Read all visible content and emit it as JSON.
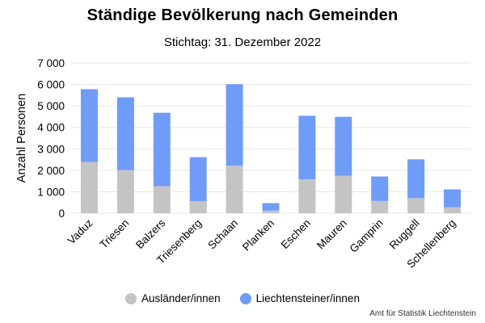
{
  "header": {
    "title": "Ständige Bevölkerung nach Gemeinden",
    "subtitle": "Stichtag: 31. Dezember 2022"
  },
  "footer": {
    "credit": "Amt für Statistik Liechtenstein"
  },
  "colors": {
    "auslaender": "#c4c4c4",
    "liechtensteiner": "#6f9cf7",
    "grid": "#e6e6e6"
  },
  "chart_data": {
    "type": "bar",
    "stacked": true,
    "title": "Ständige Bevölkerung nach Gemeinden",
    "subtitle": "Stichtag: 31. Dezember 2022",
    "xlabel": "",
    "ylabel": "Anzahl Personen",
    "ylim": [
      0,
      7000
    ],
    "yticks": [
      0,
      1000,
      2000,
      3000,
      4000,
      5000,
      6000,
      7000
    ],
    "ytick_labels": [
      "0",
      "1 000",
      "2 000",
      "3 000",
      "4 000",
      "5 000",
      "6 000",
      "7 000"
    ],
    "grid": true,
    "legend": "bottom",
    "categories": [
      "Vaduz",
      "Triesen",
      "Balzers",
      "Triesenberg",
      "Schaan",
      "Planken",
      "Eschen",
      "Mauren",
      "Gamprin",
      "Ruggell",
      "Schellenberg"
    ],
    "series": [
      {
        "name": "Ausländer/innen",
        "values": [
          2390,
          2010,
          1260,
          560,
          2210,
          120,
          1580,
          1750,
          570,
          700,
          280
        ]
      },
      {
        "name": "Liechtensteiner/innen",
        "values": [
          3390,
          3390,
          3420,
          2050,
          3800,
          350,
          2960,
          2740,
          1140,
          1810,
          830
        ]
      }
    ]
  }
}
